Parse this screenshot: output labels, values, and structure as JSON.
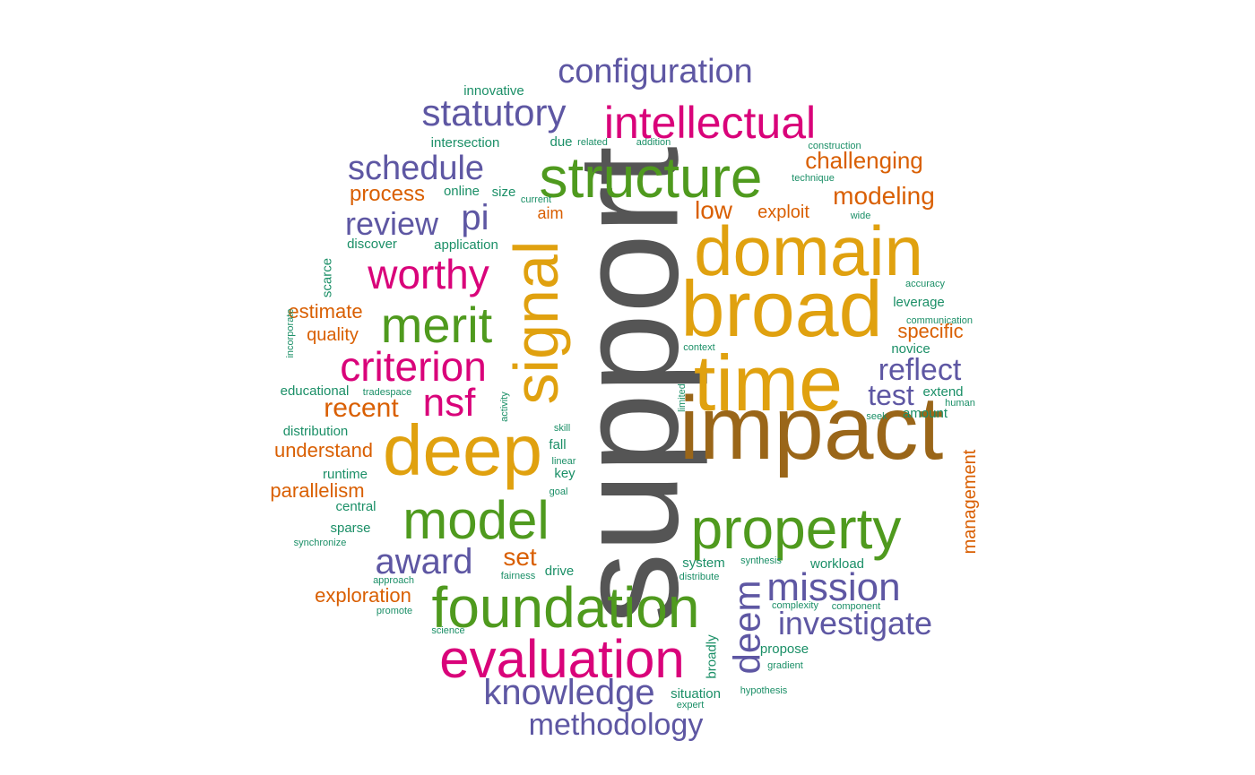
{
  "palette": {
    "orange": "#D95F02",
    "purple": "#5E57A3",
    "magenta": "#D9037A",
    "green": "#4F9A1E",
    "gold": "#E0A10F",
    "brown": "#9A6619",
    "gray": "#555555",
    "teal": "#1B8F67"
  },
  "words": [
    {
      "text": "support",
      "color": "gray"
    },
    {
      "text": "impact",
      "color": "brown"
    },
    {
      "text": "broad",
      "color": "gold"
    },
    {
      "text": "domain",
      "color": "gold"
    },
    {
      "text": "time",
      "color": "gold"
    },
    {
      "text": "deep",
      "color": "gold"
    },
    {
      "text": "signal",
      "color": "gold"
    },
    {
      "text": "structure",
      "color": "green"
    },
    {
      "text": "property",
      "color": "green"
    },
    {
      "text": "foundation",
      "color": "green"
    },
    {
      "text": "model",
      "color": "green"
    },
    {
      "text": "merit",
      "color": "green"
    },
    {
      "text": "evaluation",
      "color": "magenta"
    },
    {
      "text": "intellectual",
      "color": "magenta"
    },
    {
      "text": "worthy",
      "color": "magenta"
    },
    {
      "text": "criterion",
      "color": "magenta"
    },
    {
      "text": "nsf",
      "color": "magenta"
    },
    {
      "text": "configuration",
      "color": "purple"
    },
    {
      "text": "statutory",
      "color": "purple"
    },
    {
      "text": "schedule",
      "color": "purple"
    },
    {
      "text": "review",
      "color": "purple"
    },
    {
      "text": "pi",
      "color": "purple"
    },
    {
      "text": "award",
      "color": "purple"
    },
    {
      "text": "mission",
      "color": "purple"
    },
    {
      "text": "investigate",
      "color": "purple"
    },
    {
      "text": "knowledge",
      "color": "purple"
    },
    {
      "text": "methodology",
      "color": "purple"
    },
    {
      "text": "deem",
      "color": "purple"
    },
    {
      "text": "reflect",
      "color": "purple"
    },
    {
      "text": "test",
      "color": "purple"
    },
    {
      "text": "challenging",
      "color": "orange"
    },
    {
      "text": "modeling",
      "color": "orange"
    },
    {
      "text": "process",
      "color": "orange"
    },
    {
      "text": "low",
      "color": "orange"
    },
    {
      "text": "aim",
      "color": "orange"
    },
    {
      "text": "exploit",
      "color": "orange"
    },
    {
      "text": "estimate",
      "color": "orange"
    },
    {
      "text": "quality",
      "color": "orange"
    },
    {
      "text": "recent",
      "color": "orange"
    },
    {
      "text": "understand",
      "color": "orange"
    },
    {
      "text": "parallelism",
      "color": "orange"
    },
    {
      "text": "set",
      "color": "orange"
    },
    {
      "text": "exploration",
      "color": "orange"
    },
    {
      "text": "specific",
      "color": "orange"
    },
    {
      "text": "management",
      "color": "orange"
    },
    {
      "text": "innovative",
      "color": "teal"
    },
    {
      "text": "intersection",
      "color": "teal"
    },
    {
      "text": "due",
      "color": "teal"
    },
    {
      "text": "related",
      "color": "teal"
    },
    {
      "text": "addition",
      "color": "teal"
    },
    {
      "text": "construction",
      "color": "teal"
    },
    {
      "text": "technique",
      "color": "teal"
    },
    {
      "text": "online",
      "color": "teal"
    },
    {
      "text": "size",
      "color": "teal"
    },
    {
      "text": "current",
      "color": "teal"
    },
    {
      "text": "wide",
      "color": "teal"
    },
    {
      "text": "discover",
      "color": "teal"
    },
    {
      "text": "application",
      "color": "teal"
    },
    {
      "text": "scarce",
      "color": "teal"
    },
    {
      "text": "accuracy",
      "color": "teal"
    },
    {
      "text": "leverage",
      "color": "teal"
    },
    {
      "text": "communication",
      "color": "teal"
    },
    {
      "text": "incorporate",
      "color": "teal"
    },
    {
      "text": "novice",
      "color": "teal"
    },
    {
      "text": "context",
      "color": "teal"
    },
    {
      "text": "educational",
      "color": "teal"
    },
    {
      "text": "tradespace",
      "color": "teal"
    },
    {
      "text": "activity",
      "color": "teal"
    },
    {
      "text": "limited",
      "color": "teal"
    },
    {
      "text": "extend",
      "color": "teal"
    },
    {
      "text": "human",
      "color": "teal"
    },
    {
      "text": "seek",
      "color": "teal"
    },
    {
      "text": "amount",
      "color": "teal"
    },
    {
      "text": "distribution",
      "color": "teal"
    },
    {
      "text": "skill",
      "color": "teal"
    },
    {
      "text": "fall",
      "color": "teal"
    },
    {
      "text": "linear",
      "color": "teal"
    },
    {
      "text": "key",
      "color": "teal"
    },
    {
      "text": "runtime",
      "color": "teal"
    },
    {
      "text": "goal",
      "color": "teal"
    },
    {
      "text": "central",
      "color": "teal"
    },
    {
      "text": "sparse",
      "color": "teal"
    },
    {
      "text": "synchronize",
      "color": "teal"
    },
    {
      "text": "system",
      "color": "teal"
    },
    {
      "text": "synthesis",
      "color": "teal"
    },
    {
      "text": "workload",
      "color": "teal"
    },
    {
      "text": "distribute",
      "color": "teal"
    },
    {
      "text": "drive",
      "color": "teal"
    },
    {
      "text": "fairness",
      "color": "teal"
    },
    {
      "text": "approach",
      "color": "teal"
    },
    {
      "text": "promote",
      "color": "teal"
    },
    {
      "text": "complexity",
      "color": "teal"
    },
    {
      "text": "component",
      "color": "teal"
    },
    {
      "text": "science",
      "color": "teal"
    },
    {
      "text": "propose",
      "color": "teal"
    },
    {
      "text": "broadly",
      "color": "teal"
    },
    {
      "text": "gradient",
      "color": "teal"
    },
    {
      "text": "situation",
      "color": "teal"
    },
    {
      "text": "expert",
      "color": "teal"
    },
    {
      "text": "hypothesis",
      "color": "teal"
    }
  ]
}
